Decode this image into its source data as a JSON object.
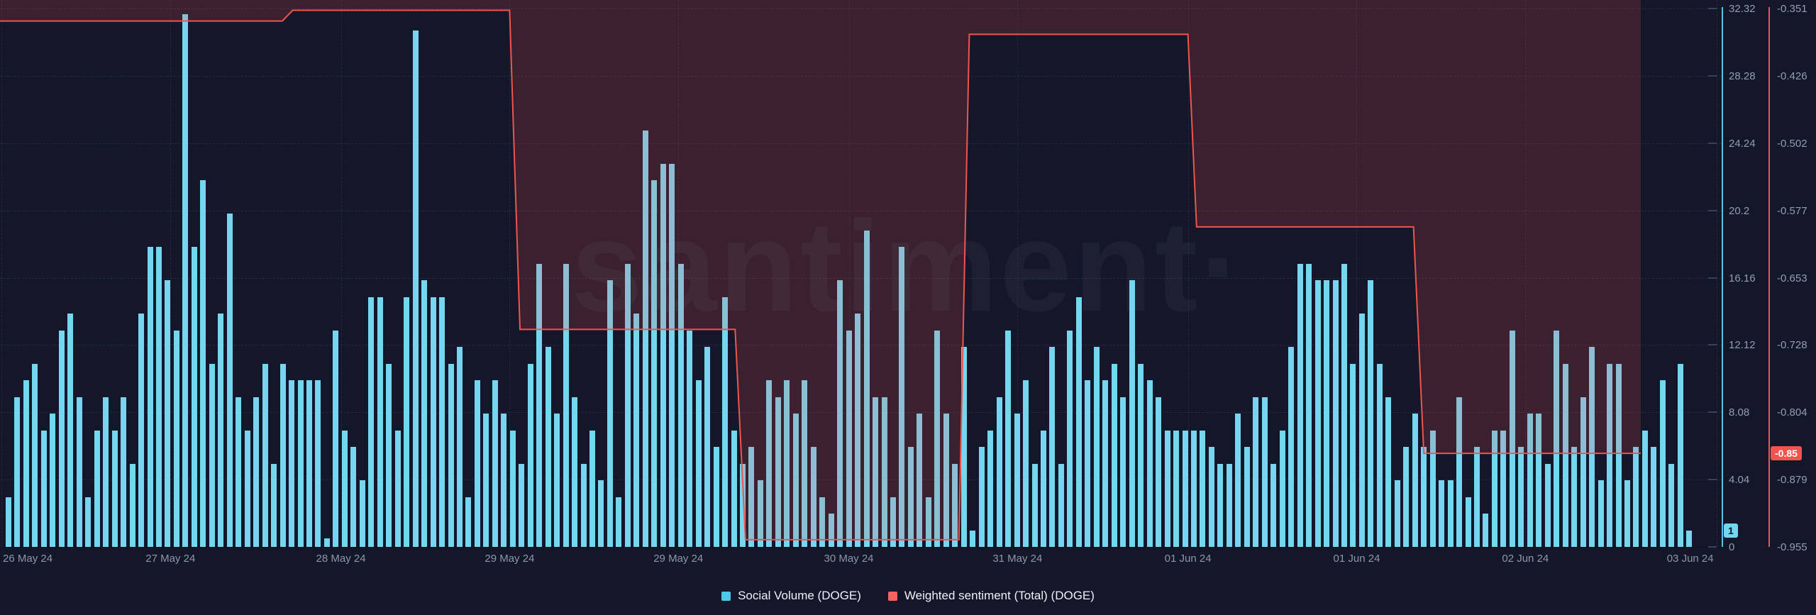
{
  "watermark": "santiment·",
  "legend": {
    "items": [
      {
        "label": "Social Volume (DOGE)",
        "color": "#4fc9e9"
      },
      {
        "label": "Weighted sentiment (Total) (DOGE)",
        "color": "#f4645a"
      }
    ]
  },
  "badges": {
    "volume_last": "1",
    "sentiment_last": "-0.85"
  },
  "colors": {
    "background": "#14172a",
    "bar": "#74d6ef",
    "sentiment_line": "#f0544c",
    "sentiment_fill": "rgba(240,84,76,0.18)",
    "axis_volume": "#55c3e4",
    "axis_sentiment": "#f0544c",
    "tick_label": "#959cb2"
  },
  "chart_data": {
    "type": "mixed",
    "title": "",
    "grid": "dashed",
    "legend_position": "bottom-center",
    "x_labels": [
      {
        "text": "26 May 24",
        "f": 0.001
      },
      {
        "text": "27 May 24",
        "f": 0.099
      },
      {
        "text": "28 May 24",
        "f": 0.198
      },
      {
        "text": "29 May 24",
        "f": 0.296
      },
      {
        "text": "29 May 24",
        "f": 0.394
      },
      {
        "text": "30 May 24",
        "f": 0.493
      },
      {
        "text": "31 May 24",
        "f": 0.591
      },
      {
        "text": "01 Jun 24",
        "f": 0.69
      },
      {
        "text": "01 Jun 24",
        "f": 0.788
      },
      {
        "text": "02 Jun 24",
        "f": 0.886
      },
      {
        "text": "03 Jun 24",
        "f": 0.997
      }
    ],
    "left_axis": {
      "label": "Social Volume",
      "min": 0,
      "max": 32.32,
      "ticks": [
        "32.32",
        "28.28",
        "24.24",
        "20.2",
        "16.16",
        "12.12",
        "8.08",
        "4.04",
        "0"
      ]
    },
    "right_axis": {
      "label": "Weighted sentiment (Total)",
      "min": -0.955,
      "max": -0.351,
      "ticks": [
        "-0.351",
        "-0.426",
        "-0.502",
        "-0.577",
        "-0.653",
        "-0.728",
        "-0.804",
        "-0.879",
        "-0.955"
      ]
    },
    "series": [
      {
        "name": "Social Volume (DOGE)",
        "type": "bar",
        "axis": "left",
        "interval": "1h",
        "first_bucket": "26 May 24",
        "last_value": 1,
        "values": [
          3,
          9,
          10,
          11,
          7,
          8,
          13,
          14,
          9,
          3,
          7,
          9,
          7,
          9,
          5,
          14,
          18,
          18,
          16,
          13,
          32,
          18,
          22,
          11,
          14,
          20,
          9,
          7,
          9,
          11,
          5,
          11,
          10,
          10,
          10,
          10,
          0.5,
          13,
          7,
          6,
          4,
          15,
          15,
          11,
          7,
          15,
          31,
          16,
          15,
          15,
          11,
          12,
          3,
          10,
          8,
          10,
          8,
          7,
          5,
          11,
          17,
          12,
          8,
          17,
          9,
          5,
          7,
          4,
          16,
          3,
          17,
          14,
          25,
          22,
          23,
          23,
          17,
          13,
          10,
          12,
          6,
          15,
          7,
          5,
          6,
          4,
          10,
          9,
          10,
          8,
          10,
          6,
          3,
          2,
          16,
          13,
          14,
          19,
          9,
          9,
          3,
          18,
          6,
          8,
          3,
          13,
          8,
          5,
          12,
          1,
          6,
          7,
          9,
          13,
          8,
          10,
          5,
          7,
          12,
          5,
          13,
          15,
          10,
          12,
          10,
          11,
          9,
          16,
          11,
          10,
          9,
          7,
          7,
          7,
          7,
          7,
          6,
          5,
          5,
          8,
          6,
          9,
          9,
          5,
          7,
          12,
          17,
          17,
          16,
          16,
          16,
          17,
          11,
          14,
          16,
          11,
          9,
          4,
          6,
          8,
          6,
          7,
          4,
          4,
          9,
          3,
          6,
          2,
          7,
          7,
          13,
          6,
          8,
          8,
          5,
          13,
          11,
          6,
          9,
          12,
          4,
          11,
          11,
          4,
          6,
          7,
          6,
          10,
          5,
          11,
          1
        ]
      },
      {
        "name": "Weighted sentiment (Total) (DOGE)",
        "type": "step-line-area",
        "axis": "right",
        "fill": "above-line-to-top",
        "last_value": -0.85,
        "segments": [
          {
            "value": -0.365,
            "x0": 0.0,
            "x1": 0.164
          },
          {
            "value": -0.353,
            "x0": 0.17,
            "x1": 0.296
          },
          {
            "value": -0.711,
            "x0": 0.302,
            "x1": 0.427
          },
          {
            "value": -0.947,
            "x0": 0.433,
            "x1": 0.557
          },
          {
            "value": -0.38,
            "x0": 0.563,
            "x1": 0.69
          },
          {
            "value": -0.596,
            "x0": 0.695,
            "x1": 0.821
          },
          {
            "value": -0.85,
            "x0": 0.827,
            "x1": 0.953
          }
        ]
      }
    ]
  }
}
